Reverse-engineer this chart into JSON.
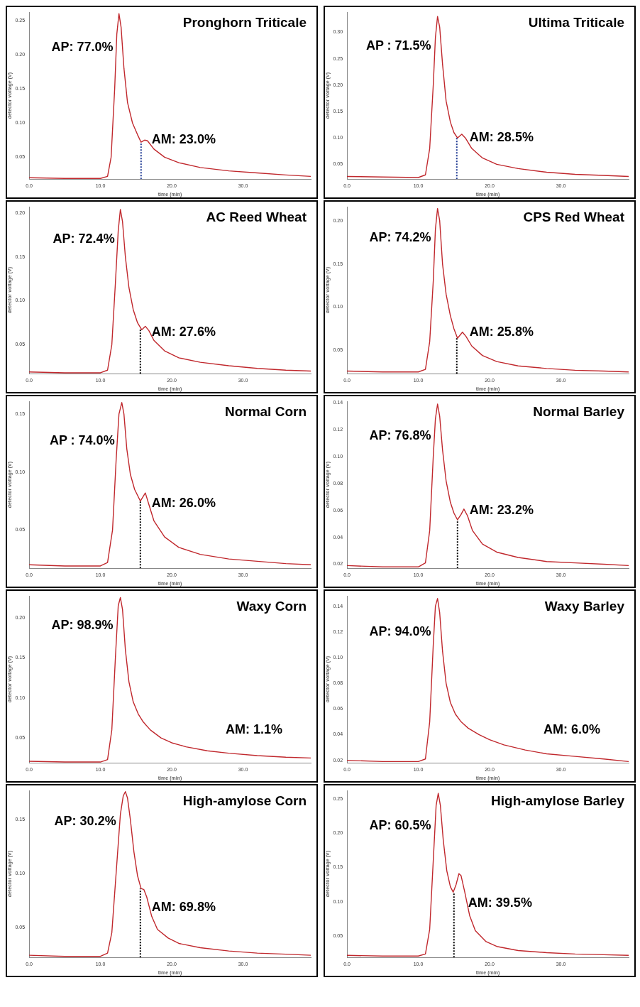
{
  "chart_data": [
    {
      "type": "line",
      "title": "Pronghorn Triticale",
      "xlabel": "time (min)",
      "ylabel": "detector voltage (V)",
      "xlim": [
        0,
        39.5
      ],
      "xticks": [
        {
          "value": 0,
          "label": "0.0"
        },
        {
          "value": 10,
          "label": "10.0"
        },
        {
          "value": 20,
          "label": "20.0"
        },
        {
          "value": 30,
          "label": "30.0"
        }
      ],
      "ylim": [
        0.018,
        0.262
      ],
      "yticks": [
        {
          "value": 0.05,
          "label": "0.05"
        },
        {
          "value": 0.1,
          "label": "0.10"
        },
        {
          "value": 0.15,
          "label": "0.15"
        },
        {
          "value": 0.2,
          "label": "0.20"
        },
        {
          "value": 0.25,
          "label": "0.25"
        }
      ],
      "series": [
        {
          "color": "#c0282d",
          "x": [
            0,
            5,
            10,
            11,
            11.5,
            12,
            12.3,
            12.6,
            12.9,
            13.3,
            13.8,
            14.5,
            15.2,
            15.7,
            16.2,
            16.6,
            17.5,
            19,
            21,
            24,
            28,
            32,
            36,
            39.5
          ],
          "values": [
            0.02,
            0.019,
            0.019,
            0.022,
            0.05,
            0.15,
            0.23,
            0.26,
            0.24,
            0.18,
            0.13,
            0.1,
            0.083,
            0.072,
            0.075,
            0.074,
            0.062,
            0.05,
            0.042,
            0.035,
            0.03,
            0.027,
            0.024,
            0.022
          ]
        },
        {
          "color": "#1f3a93",
          "line_style": "dotted",
          "x": [
            15.7,
            15.7
          ],
          "values": [
            0.018,
            0.072
          ]
        }
      ],
      "annotations": [
        {
          "text": "AP: 77.0%",
          "x": 12.2,
          "y": 0.21
        },
        {
          "text": "AM: 23.0%",
          "x": 16.8,
          "y": 0.075
        }
      ]
    },
    {
      "type": "line",
      "title": "Ultima Triticale",
      "xlabel": "time (min)",
      "ylabel": "detector voltage (V)",
      "xlim": [
        0,
        39.5
      ],
      "xticks": [
        {
          "value": 0,
          "label": "0.0"
        },
        {
          "value": 10,
          "label": "10.0"
        },
        {
          "value": 20,
          "label": "20.0"
        },
        {
          "value": 30,
          "label": "30.0"
        }
      ],
      "ylim": [
        0.022,
        0.338
      ],
      "yticks": [
        {
          "value": 0.05,
          "label": "0.05"
        },
        {
          "value": 0.1,
          "label": "0.10"
        },
        {
          "value": 0.15,
          "label": "0.15"
        },
        {
          "value": 0.2,
          "label": "0.20"
        },
        {
          "value": 0.25,
          "label": "0.25"
        },
        {
          "value": 0.3,
          "label": "0.30"
        }
      ],
      "series": [
        {
          "color": "#c0282d",
          "x": [
            0,
            5,
            10,
            11,
            11.6,
            12.1,
            12.4,
            12.7,
            13.0,
            13.4,
            13.9,
            14.5,
            15.0,
            15.5,
            16.1,
            16.6,
            17.5,
            19,
            21,
            24,
            28,
            32,
            36,
            39.5
          ],
          "values": [
            0.027,
            0.026,
            0.025,
            0.03,
            0.08,
            0.2,
            0.29,
            0.33,
            0.31,
            0.24,
            0.17,
            0.13,
            0.11,
            0.1,
            0.107,
            0.1,
            0.08,
            0.062,
            0.05,
            0.042,
            0.035,
            0.031,
            0.029,
            0.027
          ]
        },
        {
          "color": "#1f3a93",
          "line_style": "dotted",
          "x": [
            15.4,
            15.4
          ],
          "values": [
            0.022,
            0.1
          ]
        }
      ],
      "annotations": [
        {
          "text": "AP : 71.5%",
          "x": 12.2,
          "y": 0.274
        },
        {
          "text": "AM: 28.5%",
          "x": 16.8,
          "y": 0.1
        }
      ]
    },
    {
      "type": "line",
      "title": "AC Reed Wheat",
      "xlabel": "time (min)",
      "ylabel": "detector voltage (V)",
      "xlim": [
        0,
        39.5
      ],
      "xticks": [
        {
          "value": 0,
          "label": "0.0"
        },
        {
          "value": 10,
          "label": "10.0"
        },
        {
          "value": 20,
          "label": "20.0"
        },
        {
          "value": 30,
          "label": "30.0"
        }
      ],
      "ylim": [
        0.017,
        0.207
      ],
      "yticks": [
        {
          "value": 0.05,
          "label": "0.05"
        },
        {
          "value": 0.1,
          "label": "0.10"
        },
        {
          "value": 0.15,
          "label": "0.15"
        },
        {
          "value": 0.2,
          "label": "0.20"
        }
      ],
      "series": [
        {
          "color": "#c0282d",
          "x": [
            0,
            5,
            10,
            11,
            11.6,
            12.1,
            12.5,
            12.8,
            13.1,
            13.5,
            14,
            14.6,
            15.2,
            15.8,
            16.3,
            16.8,
            17.5,
            19,
            21,
            24,
            28,
            32,
            36,
            39.5
          ],
          "values": [
            0.019,
            0.018,
            0.018,
            0.021,
            0.05,
            0.12,
            0.18,
            0.204,
            0.19,
            0.15,
            0.115,
            0.09,
            0.075,
            0.067,
            0.071,
            0.066,
            0.055,
            0.043,
            0.035,
            0.03,
            0.026,
            0.023,
            0.021,
            0.02
          ]
        },
        {
          "color": "#000000",
          "line_style": "dotted",
          "x": [
            15.6,
            15.6
          ],
          "values": [
            0.017,
            0.067
          ]
        }
      ],
      "annotations": [
        {
          "text": "AP: 72.4%",
          "x": 12.4,
          "y": 0.17
        },
        {
          "text": "AM: 27.6%",
          "x": 16.8,
          "y": 0.064
        }
      ]
    },
    {
      "type": "line",
      "title": "CPS Red Wheat",
      "xlabel": "time (min)",
      "ylabel": "detector voltage (V)",
      "xlim": [
        0,
        39.5
      ],
      "xticks": [
        {
          "value": 0,
          "label": "0.0"
        },
        {
          "value": 10,
          "label": "10.0"
        },
        {
          "value": 20,
          "label": "20.0"
        },
        {
          "value": 30,
          "label": "30.0"
        }
      ],
      "ylim": [
        0.023,
        0.216
      ],
      "yticks": [
        {
          "value": 0.05,
          "label": "0.05"
        },
        {
          "value": 0.1,
          "label": "0.10"
        },
        {
          "value": 0.15,
          "label": "0.15"
        },
        {
          "value": 0.2,
          "label": "0.20"
        }
      ],
      "series": [
        {
          "color": "#c0282d",
          "x": [
            0,
            5,
            10,
            11,
            11.6,
            12.1,
            12.4,
            12.7,
            13.0,
            13.4,
            13.9,
            14.5,
            15.0,
            15.5,
            16.2,
            16.7,
            17.5,
            19,
            21,
            24,
            28,
            32,
            36,
            39.5
          ],
          "values": [
            0.026,
            0.025,
            0.025,
            0.028,
            0.06,
            0.13,
            0.19,
            0.214,
            0.2,
            0.15,
            0.115,
            0.09,
            0.075,
            0.064,
            0.071,
            0.066,
            0.055,
            0.044,
            0.037,
            0.032,
            0.029,
            0.027,
            0.026,
            0.025
          ]
        },
        {
          "color": "#000000",
          "line_style": "dotted",
          "x": [
            15.4,
            15.4
          ],
          "values": [
            0.023,
            0.064
          ]
        }
      ],
      "annotations": [
        {
          "text": "AP: 74.2%",
          "x": 12.2,
          "y": 0.18
        },
        {
          "text": "AM: 25.8%",
          "x": 16.8,
          "y": 0.071
        }
      ]
    },
    {
      "type": "line",
      "title": "Normal Corn",
      "xlabel": "time (min)",
      "ylabel": "detector voltage (V)",
      "xlim": [
        0,
        39.5
      ],
      "xticks": [
        {
          "value": 0,
          "label": "0.0"
        },
        {
          "value": 10,
          "label": "10.0"
        },
        {
          "value": 20,
          "label": "20.0"
        },
        {
          "value": 30,
          "label": "30.0"
        }
      ],
      "ylim": [
        0.017,
        0.161
      ],
      "yticks": [
        {
          "value": 0.05,
          "label": "0.05"
        },
        {
          "value": 0.1,
          "label": "0.10"
        },
        {
          "value": 0.15,
          "label": "0.15"
        }
      ],
      "series": [
        {
          "color": "#c0282d",
          "x": [
            0,
            5,
            10,
            11,
            11.7,
            12.2,
            12.6,
            13.0,
            13.3,
            13.7,
            14.2,
            14.8,
            15.6,
            16.3,
            16.8,
            17.5,
            19,
            21,
            24,
            28,
            32,
            36,
            39.5
          ],
          "values": [
            0.02,
            0.019,
            0.019,
            0.022,
            0.05,
            0.11,
            0.15,
            0.16,
            0.15,
            0.12,
            0.098,
            0.085,
            0.075,
            0.082,
            0.072,
            0.058,
            0.044,
            0.035,
            0.029,
            0.025,
            0.023,
            0.021,
            0.02
          ]
        },
        {
          "color": "#000000",
          "line_style": "dotted",
          "x": [
            15.6,
            15.6
          ],
          "values": [
            0.017,
            0.075
          ]
        }
      ],
      "annotations": [
        {
          "text": "AP : 74.0%",
          "x": 12.4,
          "y": 0.127
        },
        {
          "text": "AM: 26.0%",
          "x": 16.8,
          "y": 0.073
        }
      ]
    },
    {
      "type": "line",
      "title": "Normal Barley",
      "xlabel": "time (min)",
      "ylabel": "detector voltage (V)",
      "xlim": [
        0,
        39.5
      ],
      "xticks": [
        {
          "value": 0,
          "label": "0.0"
        },
        {
          "value": 10,
          "label": "10.0"
        },
        {
          "value": 20,
          "label": "20.0"
        },
        {
          "value": 30,
          "label": "30.0"
        }
      ],
      "ylim": [
        0.017,
        0.141
      ],
      "yticks": [
        {
          "value": 0.02,
          "label": "0.02"
        },
        {
          "value": 0.04,
          "label": "0.04"
        },
        {
          "value": 0.06,
          "label": "0.06"
        },
        {
          "value": 0.08,
          "label": "0.08"
        },
        {
          "value": 0.1,
          "label": "0.10"
        },
        {
          "value": 0.12,
          "label": "0.12"
        },
        {
          "value": 0.14,
          "label": "0.14"
        }
      ],
      "series": [
        {
          "color": "#c0282d",
          "x": [
            0,
            5,
            10,
            11,
            11.6,
            12.1,
            12.4,
            12.7,
            13.0,
            13.4,
            13.9,
            14.5,
            15.0,
            15.5,
            16.0,
            16.4,
            16.9,
            17.6,
            19,
            21,
            24,
            28,
            32,
            36,
            39.5
          ],
          "values": [
            0.019,
            0.018,
            0.018,
            0.021,
            0.045,
            0.1,
            0.128,
            0.139,
            0.13,
            0.105,
            0.082,
            0.066,
            0.058,
            0.053,
            0.057,
            0.061,
            0.056,
            0.045,
            0.035,
            0.029,
            0.025,
            0.022,
            0.021,
            0.02,
            0.019
          ]
        },
        {
          "color": "#000000",
          "line_style": "dotted",
          "x": [
            15.5,
            15.5
          ],
          "values": [
            0.017,
            0.053
          ]
        }
      ],
      "annotations": [
        {
          "text": "AP: 76.8%",
          "x": 12.2,
          "y": 0.115
        },
        {
          "text": "AM: 23.2%",
          "x": 16.8,
          "y": 0.06
        }
      ]
    },
    {
      "type": "line",
      "title": "Waxy Corn",
      "xlabel": "time (min)",
      "ylabel": "detector voltage (V)",
      "xlim": [
        0,
        39.5
      ],
      "xticks": [
        {
          "value": 0,
          "label": "0.0"
        },
        {
          "value": 10,
          "label": "10.0"
        },
        {
          "value": 20,
          "label": "20.0"
        },
        {
          "value": 30,
          "label": "30.0"
        }
      ],
      "ylim": [
        0.019,
        0.227
      ],
      "yticks": [
        {
          "value": 0.05,
          "label": "0.05"
        },
        {
          "value": 0.1,
          "label": "0.10"
        },
        {
          "value": 0.15,
          "label": "0.15"
        },
        {
          "value": 0.2,
          "label": "0.20"
        }
      ],
      "series": [
        {
          "color": "#c0282d",
          "x": [
            0,
            5,
            10,
            11,
            11.6,
            12.1,
            12.5,
            12.8,
            13.1,
            13.5,
            14,
            14.6,
            15.3,
            16,
            17,
            18.5,
            20,
            22,
            25,
            28,
            32,
            36,
            39.5
          ],
          "values": [
            0.021,
            0.02,
            0.02,
            0.023,
            0.06,
            0.15,
            0.215,
            0.225,
            0.21,
            0.16,
            0.12,
            0.095,
            0.08,
            0.07,
            0.06,
            0.05,
            0.044,
            0.039,
            0.034,
            0.031,
            0.028,
            0.026,
            0.025
          ]
        }
      ],
      "annotations": [
        {
          "text": "AP: 98.9%",
          "x": 12.2,
          "y": 0.19
        },
        "AM: 1.1%"
      ]
    },
    {
      "type": "line",
      "title": "Waxy Barley",
      "xlabel": "time (min)",
      "ylabel": "detector voltage (V)",
      "xlim": [
        0,
        39.5
      ],
      "xticks": [
        {
          "value": 0,
          "label": "0.0"
        },
        {
          "value": 10,
          "label": "10.0"
        },
        {
          "value": 20,
          "label": "20.0"
        },
        {
          "value": 30,
          "label": "30.0"
        }
      ],
      "ylim": [
        0.018,
        0.148
      ],
      "yticks": [
        {
          "value": 0.02,
          "label": "0.02"
        },
        {
          "value": 0.04,
          "label": "0.04"
        },
        {
          "value": 0.06,
          "label": "0.06"
        },
        {
          "value": 0.08,
          "label": "0.08"
        },
        {
          "value": 0.1,
          "label": "0.10"
        },
        {
          "value": 0.12,
          "label": "0.12"
        },
        {
          "value": 0.14,
          "label": "0.14"
        }
      ],
      "series": [
        {
          "color": "#c0282d",
          "x": [
            0,
            5,
            10,
            11,
            11.6,
            12.1,
            12.4,
            12.7,
            13.0,
            13.4,
            13.9,
            14.5,
            15.2,
            16,
            17,
            18.5,
            20,
            22,
            25,
            28,
            32,
            36,
            39.5
          ],
          "values": [
            0.02,
            0.019,
            0.019,
            0.021,
            0.05,
            0.11,
            0.14,
            0.146,
            0.135,
            0.105,
            0.08,
            0.065,
            0.056,
            0.05,
            0.045,
            0.04,
            0.036,
            0.032,
            0.028,
            0.025,
            0.023,
            0.021,
            0.019
          ]
        }
      ],
      "annotations": [
        {
          "text": "AP: 94.0%",
          "x": 12.2,
          "y": 0.12
        },
        "AM: 6.0%"
      ]
    },
    {
      "type": "line",
      "title": "High-amylose Corn",
      "xlabel": "time (min)",
      "ylabel": "detector voltage (V)",
      "xlim": [
        0,
        39.5
      ],
      "xticks": [
        {
          "value": 0,
          "label": "0.0"
        },
        {
          "value": 10,
          "label": "10.0"
        },
        {
          "value": 20,
          "label": "20.0"
        },
        {
          "value": 30,
          "label": "30.0"
        }
      ],
      "ylim": [
        0.022,
        0.177
      ],
      "yticks": [
        {
          "value": 0.05,
          "label": "0.05"
        },
        {
          "value": 0.1,
          "label": "0.10"
        },
        {
          "value": 0.15,
          "label": "0.15"
        }
      ],
      "series": [
        {
          "color": "#c0282d",
          "x": [
            0,
            5,
            10,
            11,
            11.6,
            12.2,
            12.8,
            13.2,
            13.5,
            13.8,
            14.2,
            14.7,
            15.2,
            15.7,
            16.1,
            16.5,
            17.2,
            18,
            19.5,
            21,
            24,
            28,
            32,
            36,
            39.5
          ],
          "values": [
            0.024,
            0.023,
            0.023,
            0.026,
            0.045,
            0.1,
            0.155,
            0.172,
            0.176,
            0.17,
            0.15,
            0.12,
            0.098,
            0.086,
            0.085,
            0.078,
            0.06,
            0.048,
            0.04,
            0.035,
            0.031,
            0.028,
            0.026,
            0.025,
            0.024
          ]
        },
        {
          "color": "#000000",
          "line_style": "dotted",
          "x": [
            15.6,
            15.6
          ],
          "values": [
            0.022,
            0.086
          ]
        }
      ],
      "annotations": [
        {
          "text": "AP: 30.2%",
          "x": 12.6,
          "y": 0.148
        },
        {
          "text": "AM: 69.8%",
          "x": 16.8,
          "y": 0.068
        }
      ]
    },
    {
      "type": "line",
      "title": "High-amylose Barley",
      "xlabel": "time (min)",
      "ylabel": "detector voltage (V)",
      "xlim": [
        0,
        39.5
      ],
      "xticks": [
        {
          "value": 0,
          "label": "0.0"
        },
        {
          "value": 10,
          "label": "10.0"
        },
        {
          "value": 20,
          "label": "20.0"
        },
        {
          "value": 30,
          "label": "30.0"
        }
      ],
      "ylim": [
        0.019,
        0.262
      ],
      "yticks": [
        {
          "value": 0.05,
          "label": "0.05"
        },
        {
          "value": 0.1,
          "label": "0.10"
        },
        {
          "value": 0.15,
          "label": "0.15"
        },
        {
          "value": 0.2,
          "label": "0.20"
        },
        {
          "value": 0.25,
          "label": "0.25"
        }
      ],
      "series": [
        {
          "color": "#c0282d",
          "x": [
            0,
            5,
            10,
            11,
            11.6,
            12.1,
            12.5,
            12.8,
            13.1,
            13.5,
            14,
            14.5,
            14.9,
            15.3,
            15.7,
            16.0,
            16.5,
            17.2,
            18,
            19.5,
            21,
            24,
            28,
            32,
            36,
            39.5
          ],
          "values": [
            0.022,
            0.021,
            0.021,
            0.024,
            0.06,
            0.16,
            0.24,
            0.258,
            0.24,
            0.19,
            0.145,
            0.122,
            0.114,
            0.125,
            0.141,
            0.138,
            0.115,
            0.08,
            0.058,
            0.042,
            0.035,
            0.029,
            0.026,
            0.024,
            0.023,
            0.022
          ]
        },
        {
          "color": "#000000",
          "line_style": "dotted",
          "x": [
            15.0,
            15.0
          ],
          "values": [
            0.019,
            0.114
          ]
        }
      ],
      "annotations": [
        {
          "text": "AP: 60.5%",
          "x": 12.2,
          "y": 0.21
        },
        {
          "text": "AM: 39.5%",
          "x": 16.6,
          "y": 0.098
        }
      ]
    }
  ]
}
